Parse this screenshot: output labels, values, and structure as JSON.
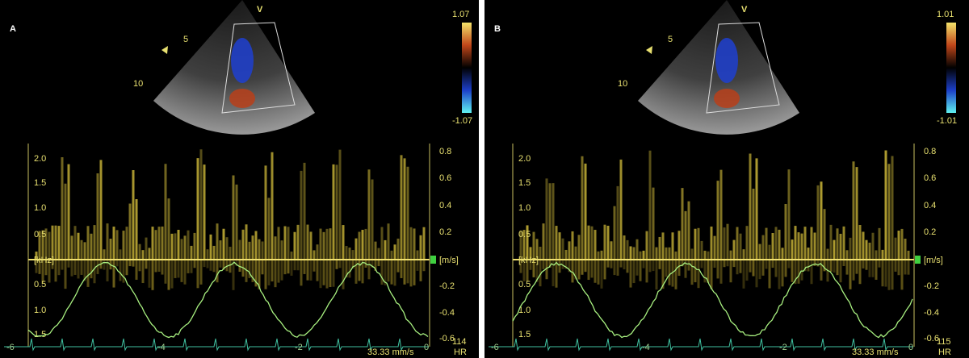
{
  "panels": [
    {
      "label": "A",
      "marker": "V",
      "depth_labels": [
        "5",
        "10"
      ],
      "color_max": "1.07",
      "color_min": "-1.07",
      "left_ticks": [
        "2.0",
        "1.5",
        "1.0",
        "0.5",
        "[kHz]",
        "0.5",
        "1.0",
        "1.5"
      ],
      "right_ticks": [
        "0.8",
        "0.6",
        "0.4",
        "0.2",
        "[m/s]",
        "-0.2",
        "-0.4",
        "-0.6"
      ],
      "time_ticks": [
        "-6",
        "-4",
        "-2",
        "0"
      ],
      "sweep": "33.33 mm/s",
      "hr_value": "114",
      "hr_label": "HR"
    },
    {
      "label": "B",
      "marker": "V",
      "depth_labels": [
        "5",
        "10"
      ],
      "color_max": "1.01",
      "color_min": "-1.01",
      "left_ticks": [
        "2.0",
        "1.5",
        "1.0",
        "0.5",
        "[kHz]",
        "0.5",
        "1.0",
        "1.5"
      ],
      "right_ticks": [
        "0.8",
        "0.6",
        "0.4",
        "0.2",
        "[m/s]",
        "-0.2",
        "-0.4",
        "-0.6"
      ],
      "time_ticks": [
        "-6",
        "-4",
        "-2",
        "0"
      ],
      "sweep": "33.33 mm/s",
      "hr_value": "115",
      "hr_label": "HR"
    }
  ]
}
